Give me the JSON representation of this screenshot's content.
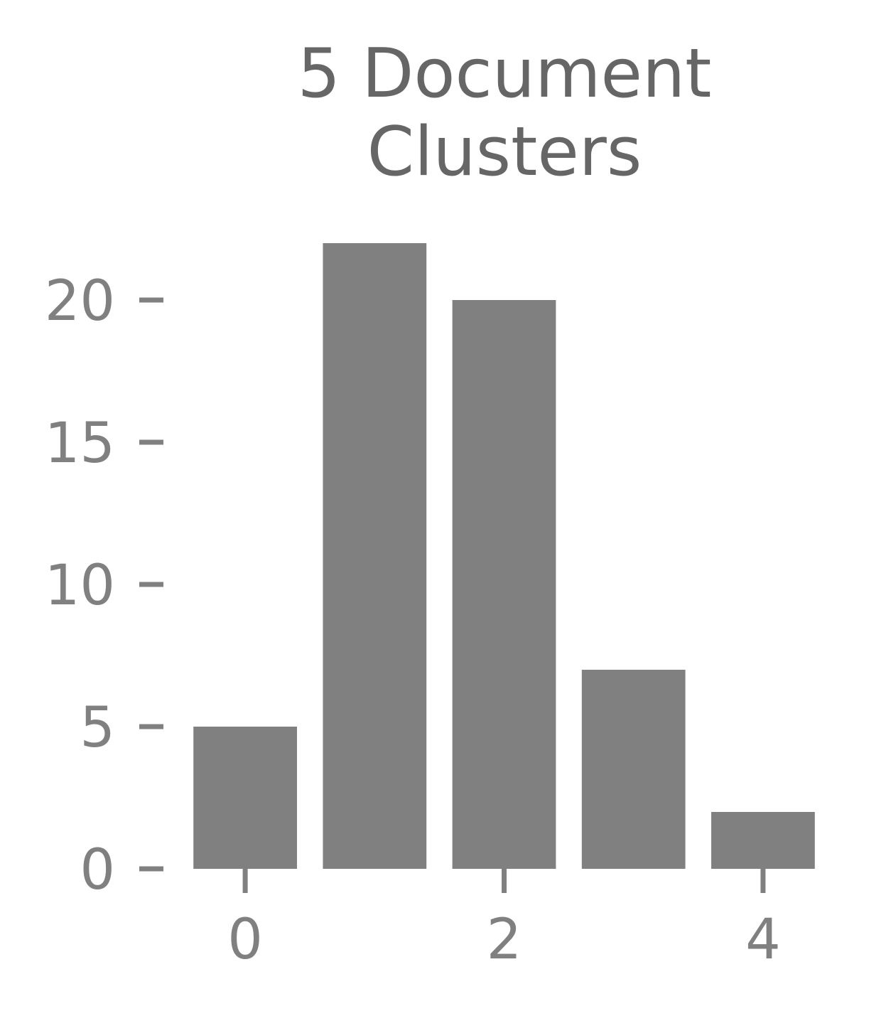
{
  "chart_data": {
    "type": "bar",
    "title_lines": [
      "5 Document",
      "Clusters"
    ],
    "xlabel": "",
    "ylabel": "",
    "categories": [
      0,
      1,
      2,
      3,
      4
    ],
    "values": [
      5,
      22,
      20,
      7,
      2
    ],
    "xlim": [
      -0.5,
      4.5
    ],
    "ylim": [
      0,
      22
    ],
    "xticks": [
      0,
      2,
      4
    ],
    "yticks": [
      0,
      5,
      10,
      15,
      20
    ],
    "bar_color": "#808080",
    "grid": false,
    "legend": "none"
  }
}
